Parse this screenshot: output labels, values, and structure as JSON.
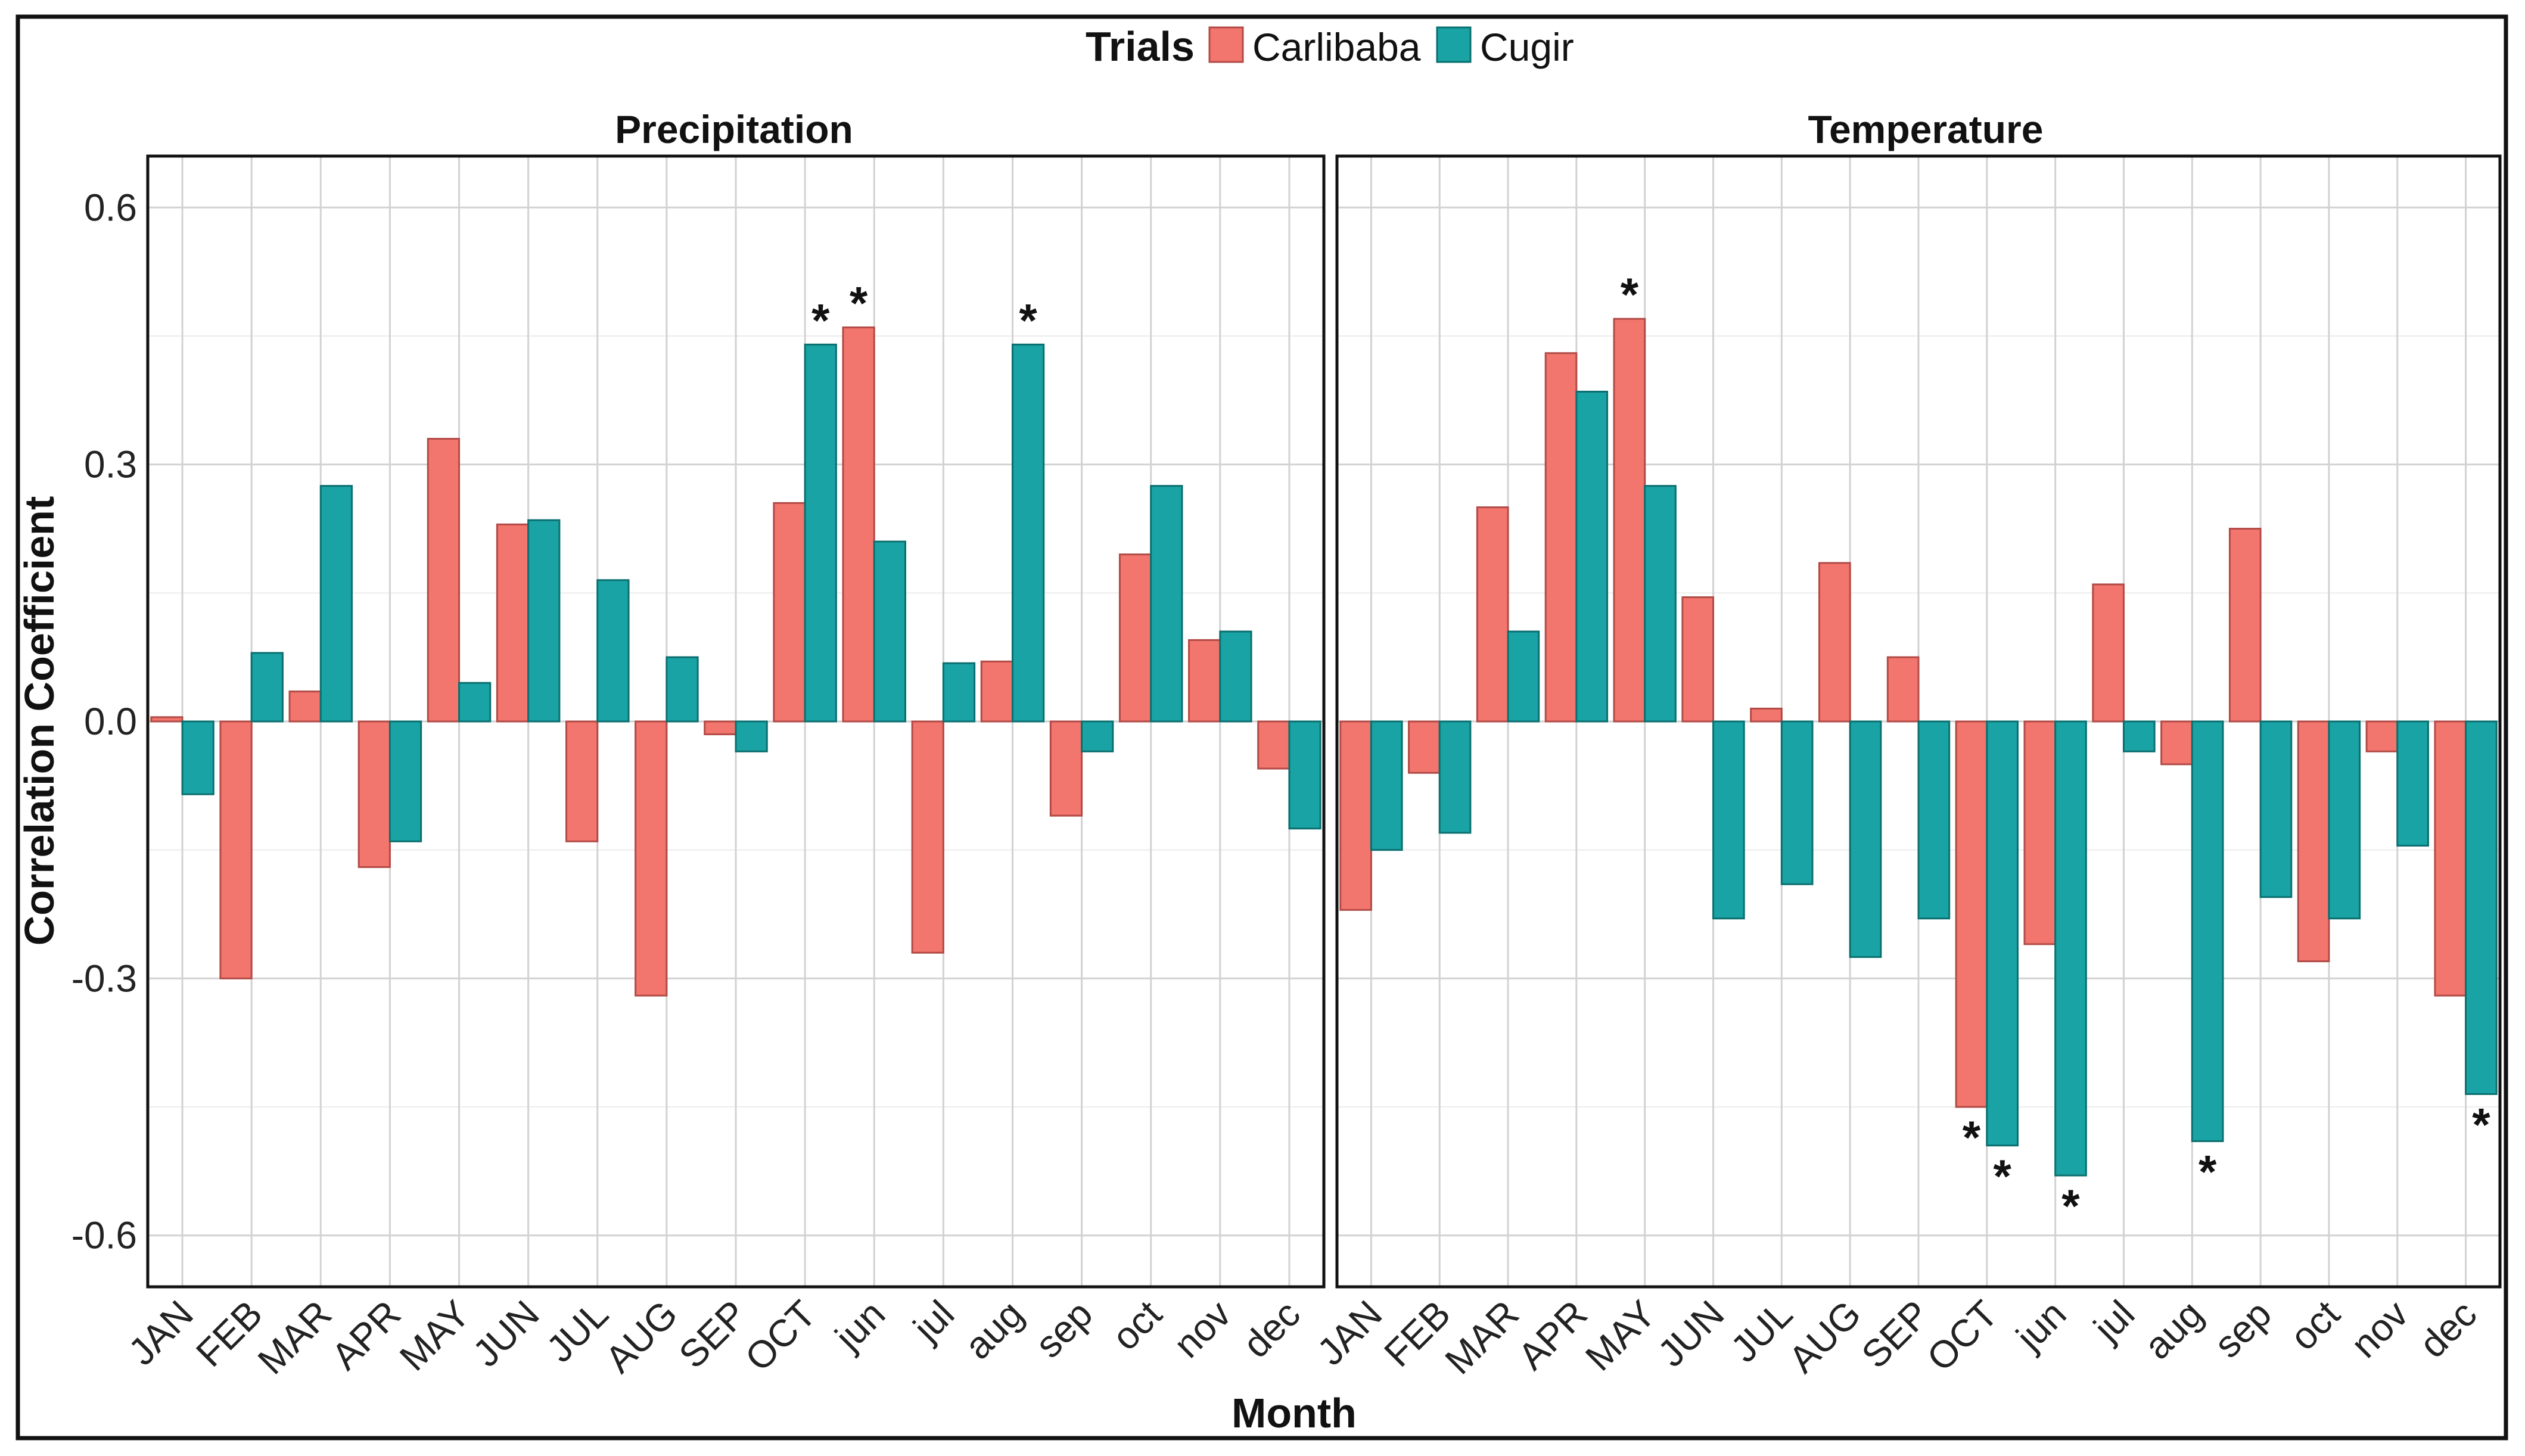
{
  "chart_data": {
    "type": "bar",
    "legend": {
      "title": "Trials",
      "position": "top",
      "items": [
        {
          "name": "Carlibaba",
          "color": "#f2766d"
        },
        {
          "name": "Cugir",
          "color": "#1aa3a5"
        }
      ]
    },
    "xlabel": "Month",
    "ylabel": "Correlation Coefficient",
    "ylim": [
      -0.66,
      0.66
    ],
    "yticks": [
      {
        "value": 0.6,
        "label": "0.6"
      },
      {
        "value": 0.3,
        "label": "0.3"
      },
      {
        "value": 0.0,
        "label": "0.0"
      },
      {
        "value": -0.3,
        "label": "-0.3"
      },
      {
        "value": -0.6,
        "label": "-0.6"
      }
    ],
    "grid": true,
    "categories": [
      "JAN",
      "FEB",
      "MAR",
      "APR",
      "MAY",
      "JUN",
      "JUL",
      "AUG",
      "SEP",
      "OCT",
      "jun",
      "jul",
      "aug",
      "sep",
      "oct",
      "nov",
      "dec"
    ],
    "panels": [
      {
        "title": "Precipitation",
        "series": [
          {
            "name": "Carlibaba",
            "values": [
              0.005,
              -0.3,
              0.035,
              -0.17,
              0.33,
              0.23,
              -0.14,
              -0.32,
              -0.015,
              0.255,
              0.46,
              -0.27,
              0.07,
              -0.11,
              0.195,
              0.095,
              -0.055
            ]
          },
          {
            "name": "Cugir",
            "values": [
              -0.085,
              0.08,
              0.275,
              -0.14,
              0.045,
              0.235,
              0.165,
              0.075,
              -0.035,
              0.44,
              0.21,
              0.068,
              0.44,
              -0.035,
              0.275,
              0.105,
              -0.125
            ]
          }
        ],
        "significance": [
          {
            "category": "OCT",
            "series": "Cugir",
            "label": "*"
          },
          {
            "category": "jun",
            "series": "Carlibaba",
            "label": "*"
          },
          {
            "category": "aug",
            "series": "Cugir",
            "label": "*"
          }
        ]
      },
      {
        "title": "Temperature",
        "series": [
          {
            "name": "Carlibaba",
            "values": [
              -0.22,
              -0.06,
              0.25,
              0.43,
              0.47,
              0.145,
              0.015,
              0.185,
              0.075,
              -0.45,
              -0.26,
              0.16,
              -0.05,
              0.225,
              -0.28,
              -0.035,
              -0.32
            ]
          },
          {
            "name": "Cugir",
            "values": [
              -0.15,
              -0.13,
              0.105,
              0.385,
              0.275,
              -0.23,
              -0.19,
              -0.275,
              -0.23,
              -0.495,
              -0.53,
              -0.035,
              -0.49,
              -0.205,
              -0.23,
              -0.145,
              -0.435
            ]
          }
        ],
        "significance": [
          {
            "category": "MAY",
            "series": "Carlibaba",
            "label": "*"
          },
          {
            "category": "OCT",
            "series": "Carlibaba",
            "label": "*"
          },
          {
            "category": "OCT",
            "series": "Cugir",
            "label": "*"
          },
          {
            "category": "jun",
            "series": "Cugir",
            "label": "*"
          },
          {
            "category": "aug",
            "series": "Cugir",
            "label": "*"
          },
          {
            "category": "dec",
            "series": "Cugir",
            "label": "*"
          }
        ]
      }
    ]
  }
}
